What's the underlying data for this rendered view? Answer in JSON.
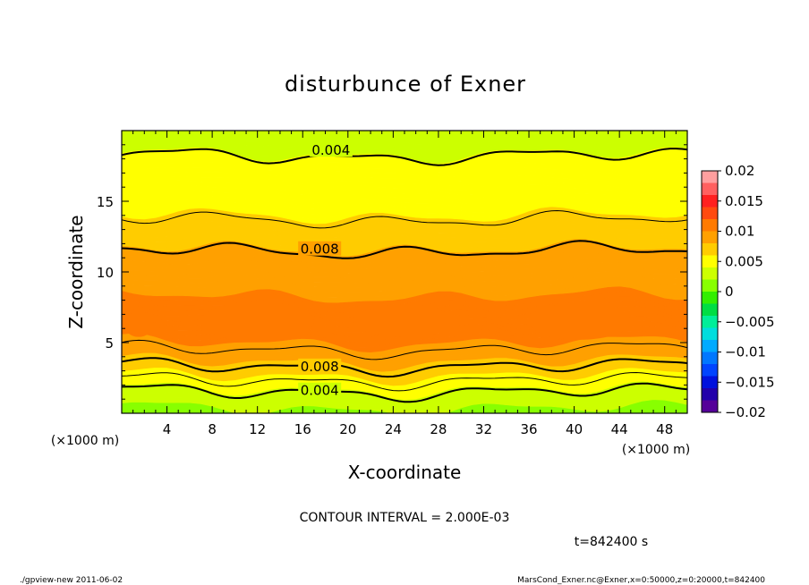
{
  "chart_data": {
    "type": "heatmap",
    "title": "disturbunce of Exner",
    "xlabel": "X-coordinate",
    "ylabel": "Z-coordinate",
    "x_unit": "(×1000 m)",
    "y_unit": "(×1000 m)",
    "xlim": [
      0,
      50
    ],
    "ylim": [
      0,
      20
    ],
    "x_ticks": [
      "4",
      "8",
      "12",
      "16",
      "20",
      "24",
      "28",
      "32",
      "36",
      "40",
      "44",
      "48"
    ],
    "y_ticks": [
      "5",
      "10",
      "15"
    ],
    "colorbar": {
      "range": [
        -0.02,
        0.02
      ],
      "labels": [
        "0.02",
        "0.015",
        "0.01",
        "0.005",
        "0",
        "−0.005",
        "−0.01",
        "−0.015",
        "−0.02"
      ],
      "colors": [
        "#ff9f9f",
        "#ff6060",
        "#ff2020",
        "#ff4a10",
        "#ff7a00",
        "#ffa000",
        "#ffcc00",
        "#ffff00",
        "#ccff00",
        "#88ff00",
        "#33ee00",
        "#00dd44",
        "#00ee99",
        "#00dddd",
        "#00aaff",
        "#0077ff",
        "#0044ff",
        "#0011dd",
        "#2200aa",
        "#550099"
      ]
    },
    "contour_labels": [
      "0.004",
      "0.008",
      "0.008",
      "0.004"
    ],
    "contour_interval_text": "CONTOUR INTERVAL = 2.000E-03",
    "time_text": "t=842400 s",
    "profile": [
      {
        "z": 0.0,
        "v": 0.0015
      },
      {
        "z": 1.0,
        "v": 0.003
      },
      {
        "z": 2.0,
        "v": 0.0045
      },
      {
        "z": 2.8,
        "v": 0.0065
      },
      {
        "z": 3.5,
        "v": 0.008
      },
      {
        "z": 4.5,
        "v": 0.0095
      },
      {
        "z": 5.5,
        "v": 0.0105
      },
      {
        "z": 7.0,
        "v": 0.0107
      },
      {
        "z": 8.5,
        "v": 0.01
      },
      {
        "z": 10.0,
        "v": 0.0092
      },
      {
        "z": 11.5,
        "v": 0.0081
      },
      {
        "z": 13.5,
        "v": 0.0062
      },
      {
        "z": 16.0,
        "v": 0.005
      },
      {
        "z": 18.2,
        "v": 0.004
      },
      {
        "z": 20.0,
        "v": 0.0032
      }
    ],
    "contour_levels_z": [
      1.5,
      2.3,
      3.3,
      4.5,
      11.5,
      13.7,
      18.2
    ],
    "contour_bold_levels_z": [
      1.5,
      3.3,
      11.5,
      18.2
    ],
    "peak_blobs": [
      {
        "x": 1.5,
        "z": 6.3,
        "rx": 1.3,
        "rz": 0.9
      },
      {
        "x": 12.0,
        "z": 6.5,
        "rx": 5.0,
        "rz": 1.4
      },
      {
        "x": 25.0,
        "z": 6.5,
        "rx": 4.5,
        "rz": 1.1
      },
      {
        "x": 40.5,
        "z": 6.5,
        "rx": 4.5,
        "rz": 1.3
      }
    ]
  },
  "footer": {
    "left": "./gpview-new  2011-06-02",
    "right": "MarsCond_Exner.nc@Exner,x=0:50000,z=0:20000,t=842400"
  }
}
